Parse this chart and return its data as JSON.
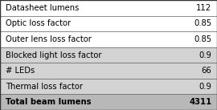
{
  "rows": [
    {
      "label": "Datasheet lumens",
      "value": "112",
      "bold": false,
      "bg": "#ffffff"
    },
    {
      "label": "Optic loss factor",
      "value": "0.85",
      "bold": false,
      "bg": "#ffffff"
    },
    {
      "label": "Outer lens loss factor",
      "value": "0.85",
      "bold": false,
      "bg": "#ffffff"
    },
    {
      "label": "Blocked light loss factor",
      "value": "0.9",
      "bold": false,
      "bg": "#d3d3d3"
    },
    {
      "label": "# LEDs",
      "value": "66",
      "bold": false,
      "bg": "#d3d3d3"
    },
    {
      "label": "Thermal loss factor",
      "value": "0.9",
      "bold": false,
      "bg": "#d3d3d3"
    },
    {
      "label": "Total beam lumens",
      "value": "4311",
      "bold": true,
      "bg": "#b8b8b8"
    }
  ],
  "border_color": "#555555",
  "text_color": "#000000",
  "font_size": 7.2,
  "dpi": 100,
  "fig_width": 2.7,
  "fig_height": 1.37,
  "outer_border_color": "#333333",
  "outer_border_lw": 1.0
}
